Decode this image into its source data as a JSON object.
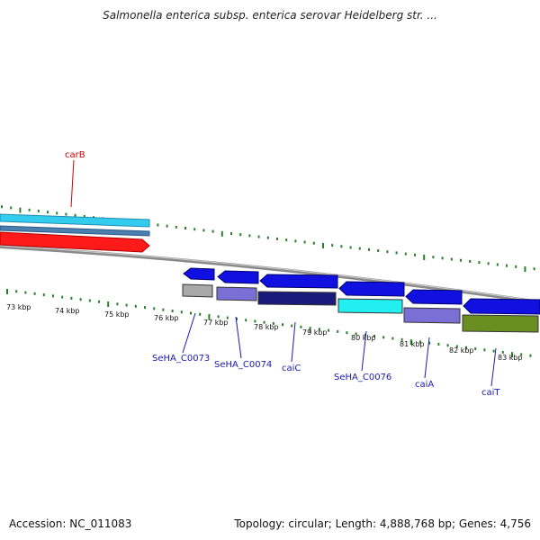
{
  "title": "Salmonella enterica subsp. enterica serovar Heidelberg str. ...",
  "footer": {
    "accession": "Accession: NC_011083",
    "summary": "Topology: circular; Length: 4,888,768 bp; Genes: 4,756"
  },
  "colors": {
    "tick": "#2a7f2a",
    "backbone": "#8a8a8a",
    "blue_gene": "#1010e0",
    "red_gene": "#ff1a1a",
    "light_blue_gene": "#33ccee",
    "purple_gene": "#7b6fd6",
    "dark_navy_gene": "#1a1a7a",
    "cyan_gene": "#22f0f0",
    "gray_gene": "#a9a9a9",
    "olive_gene": "#6b8e23",
    "upper_label": "#cc0000",
    "lower_label": "#1a1ab0"
  },
  "tick_labels": [
    "73 kbp",
    "74 kbp",
    "75 kbp",
    "76 kbp",
    "77 kbp",
    "78 kbp",
    "79 kbp",
    "80 kbp",
    "81 kbp",
    "82 kbp",
    "83 kbp"
  ],
  "upper_labels": [
    {
      "text": "carB"
    }
  ],
  "lower_labels": [
    {
      "text": "SeHA_C0073"
    },
    {
      "text": "SeHA_C0074"
    },
    {
      "text": "caiC"
    },
    {
      "text": "SeHA_C0076"
    },
    {
      "text": "caiA"
    },
    {
      "text": "caiT"
    }
  ]
}
